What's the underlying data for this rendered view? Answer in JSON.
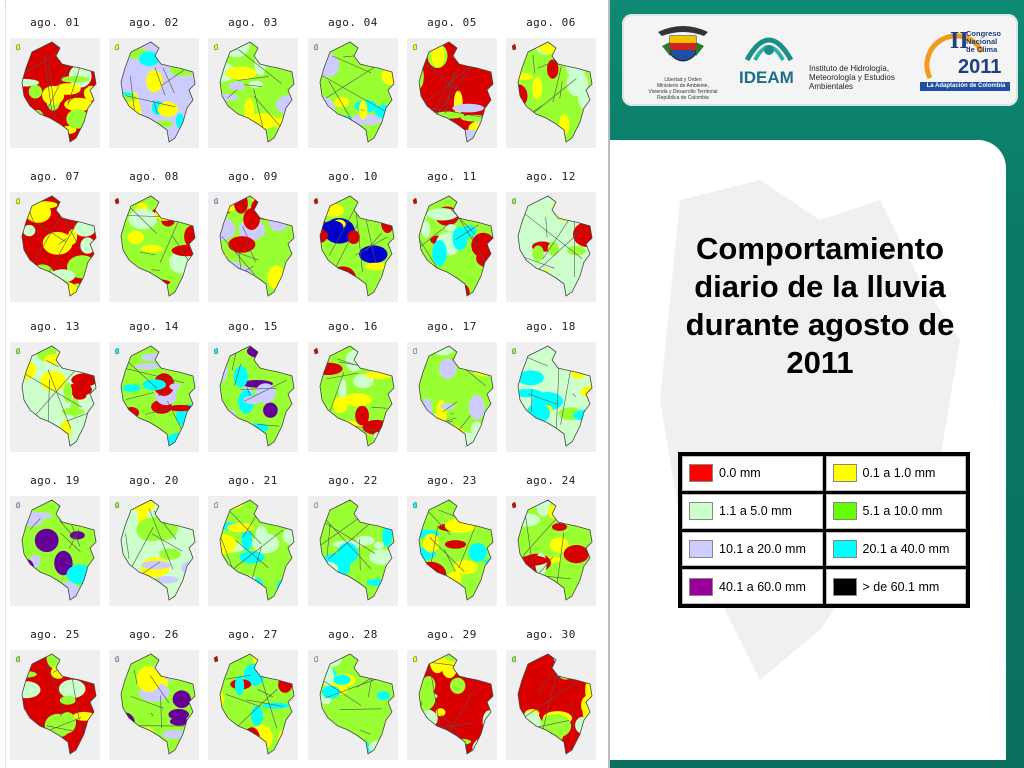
{
  "maps": [
    {
      "label": "ago. 01",
      "dom": "#d90000",
      "mix": [
        "#ffff00",
        "#99ff33",
        "#ccffcc"
      ]
    },
    {
      "label": "ago. 02",
      "dom": "#ccccff",
      "mix": [
        "#ffff00",
        "#99ff33",
        "#00ffff"
      ]
    },
    {
      "label": "ago. 03",
      "dom": "#99ff33",
      "mix": [
        "#ffff00",
        "#ccccff",
        "#ccffcc"
      ]
    },
    {
      "label": "ago. 04",
      "dom": "#99ff33",
      "mix": [
        "#ccccff",
        "#00ffff",
        "#ffff00"
      ]
    },
    {
      "label": "ago. 05",
      "dom": "#d90000",
      "mix": [
        "#ffff00",
        "#99ff33",
        "#ccccff"
      ]
    },
    {
      "label": "ago. 06",
      "dom": "#99ff33",
      "mix": [
        "#d90000",
        "#ffff00",
        "#ccffcc"
      ]
    },
    {
      "label": "ago. 07",
      "dom": "#d90000",
      "mix": [
        "#ffff00",
        "#99ff33",
        "#ccffcc"
      ]
    },
    {
      "label": "ago. 08",
      "dom": "#99ff33",
      "mix": [
        "#d90000",
        "#ffff00",
        "#ccffcc"
      ]
    },
    {
      "label": "ago. 09",
      "dom": "#99ff33",
      "mix": [
        "#ccccff",
        "#d90000",
        "#ffff00"
      ]
    },
    {
      "label": "ago. 10",
      "dom": "#99ff33",
      "mix": [
        "#d90000",
        "#ffff00",
        "#0000cc"
      ]
    },
    {
      "label": "ago. 11",
      "dom": "#99ff33",
      "mix": [
        "#d90000",
        "#ccffcc",
        "#00ffff"
      ]
    },
    {
      "label": "ago. 12",
      "dom": "#ccffcc",
      "mix": [
        "#99ff33",
        "#d90000",
        "#ffff00"
      ]
    },
    {
      "label": "ago. 13",
      "dom": "#ccffcc",
      "mix": [
        "#99ff33",
        "#d90000",
        "#ffff00"
      ]
    },
    {
      "label": "ago. 14",
      "dom": "#99ff33",
      "mix": [
        "#00ffff",
        "#ccccff",
        "#d90000"
      ]
    },
    {
      "label": "ago. 15",
      "dom": "#99ff33",
      "mix": [
        "#00ffff",
        "#ccccff",
        "#660099"
      ]
    },
    {
      "label": "ago. 16",
      "dom": "#99ff33",
      "mix": [
        "#d90000",
        "#ffff00",
        "#ccffcc"
      ]
    },
    {
      "label": "ago. 17",
      "dom": "#99ff33",
      "mix": [
        "#ccffcc",
        "#ccccff",
        "#ffff00"
      ]
    },
    {
      "label": "ago. 18",
      "dom": "#ccffcc",
      "mix": [
        "#99ff33",
        "#00ffff",
        "#ffff00"
      ]
    },
    {
      "label": "ago. 19",
      "dom": "#99ff33",
      "mix": [
        "#ccccff",
        "#00ffff",
        "#660099"
      ]
    },
    {
      "label": "ago. 20",
      "dom": "#ccffcc",
      "mix": [
        "#99ff33",
        "#ccccff",
        "#ffff00"
      ]
    },
    {
      "label": "ago. 21",
      "dom": "#99ff33",
      "mix": [
        "#ccffcc",
        "#00ffff",
        "#ffff00"
      ]
    },
    {
      "label": "ago. 22",
      "dom": "#99ff33",
      "mix": [
        "#ccffcc",
        "#ffff00",
        "#00ffff"
      ]
    },
    {
      "label": "ago. 23",
      "dom": "#99ff33",
      "mix": [
        "#00ffff",
        "#d90000",
        "#ffff00"
      ]
    },
    {
      "label": "ago. 24",
      "dom": "#99ff33",
      "mix": [
        "#d90000",
        "#ffff00",
        "#ccffcc"
      ]
    },
    {
      "label": "ago. 25",
      "dom": "#d90000",
      "mix": [
        "#99ff33",
        "#ffff00",
        "#ccffcc"
      ]
    },
    {
      "label": "ago. 26",
      "dom": "#99ff33",
      "mix": [
        "#ccccff",
        "#ffff00",
        "#660099"
      ]
    },
    {
      "label": "ago. 27",
      "dom": "#99ff33",
      "mix": [
        "#d90000",
        "#00ffff",
        "#ffff00"
      ]
    },
    {
      "label": "ago. 28",
      "dom": "#99ff33",
      "mix": [
        "#ccffcc",
        "#00ffff",
        "#ffff00"
      ]
    },
    {
      "label": "ago. 29",
      "dom": "#d90000",
      "mix": [
        "#ffff00",
        "#99ff33",
        "#ccffcc"
      ]
    },
    {
      "label": "ago. 30",
      "dom": "#d90000",
      "mix": [
        "#99ff33",
        "#ffff00",
        "#ccffcc"
      ]
    }
  ],
  "title": "Comportamiento diario de la lluvia durante agosto de 2011",
  "legend": [
    {
      "label": "0.0 mm",
      "color": "#ff0000"
    },
    {
      "label": "0.1 a 1.0 mm",
      "color": "#ffff00"
    },
    {
      "label": "1.1 a 5.0 mm",
      "color": "#ccffcc"
    },
    {
      "label": "5.1 a 10.0 mm",
      "color": "#66ff00"
    },
    {
      "label": "10.1 a 20.0 mm",
      "color": "#ccccff"
    },
    {
      "label": "20.1 a 40.0 mm",
      "color": "#00ffff"
    },
    {
      "label": "40.1 a 60.0 mm",
      "color": "#990099"
    },
    {
      "label": "> de 60.1 mm",
      "color": "#000000"
    }
  ],
  "logos": {
    "ministerio_caption": "Libertad y Orden\nMinisterio de Ambiente, Vivienda y Desarrollo Territorial\nRepública de Colombia",
    "ideam_name": "IDEAM",
    "ideam_caption": "Instituto de Hidrología, Meteorología y Estudios Ambientales",
    "congreso_roman": "II",
    "congreso_line1": "Congreso",
    "congreso_line2": "Nacional",
    "congreso_line3": "de Clima",
    "congreso_year": "2011",
    "congreso_tagline": "La Adaptación de Colombia"
  }
}
